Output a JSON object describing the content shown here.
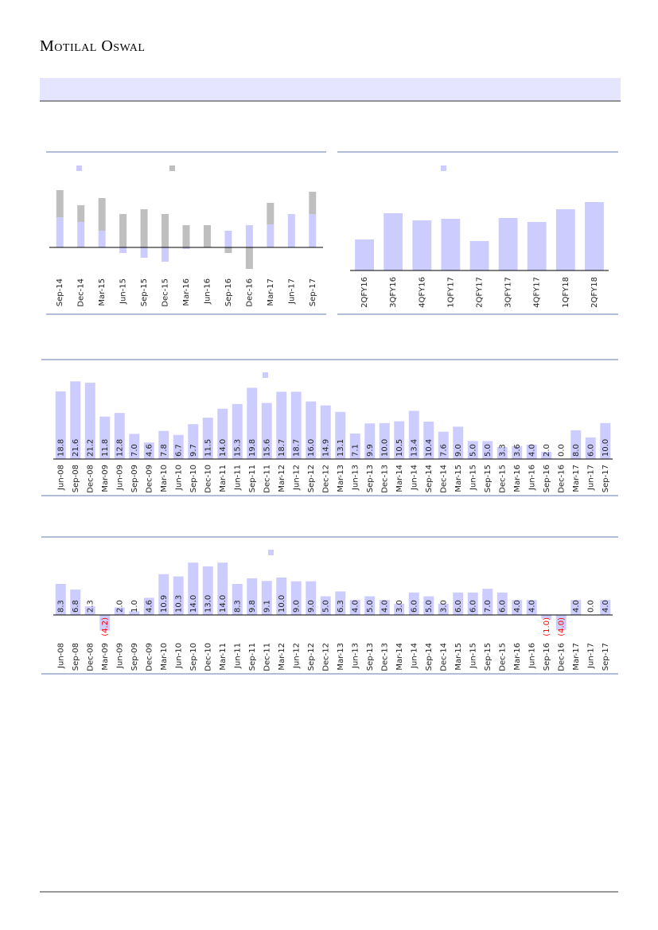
{
  "header": {
    "brand": "Motilal Oswal"
  },
  "chart_data": [
    {
      "type": "bar",
      "stacked": true,
      "categories": [
        "Sep-14",
        "Dec-14",
        "Mar-15",
        "Jun-15",
        "Sep-15",
        "Dec-15",
        "Mar-16",
        "Jun-16",
        "Sep-16",
        "Dec-16",
        "Mar-17",
        "Jun-17",
        "Sep-17"
      ],
      "series": [
        {
          "color": "#ccccff",
          "values": [
            3.8,
            3.2,
            2.1,
            -0.7,
            -1.3,
            -1.8,
            -0.2,
            0,
            2.1,
            2.8,
            2.9,
            4.2,
            4.2
          ]
        },
        {
          "color": "#bfbfbf",
          "values": [
            3.4,
            2.1,
            4.1,
            4.2,
            4.8,
            4.2,
            2.8,
            2.8,
            -0.7,
            -2.7,
            2.7,
            0,
            2.8
          ]
        }
      ],
      "ylim": [
        -3.4,
        8.6
      ]
    },
    {
      "type": "bar",
      "color": "#ccccff",
      "categories": [
        "2QFY16",
        "3QFY16",
        "4QFY16",
        "1QFY17",
        "2QFY17",
        "3QFY17",
        "4QFY17",
        "1QFY18",
        "2QFY18"
      ],
      "values": [
        3.9,
        7.2,
        6.3,
        6.5,
        3.7,
        6.6,
        6.1,
        7.7,
        8.6
      ],
      "ylim": [
        0,
        11.5
      ]
    },
    {
      "type": "bar",
      "color": "#ccccff",
      "categories": [
        "Jun-08",
        "Sep-08",
        "Dec-08",
        "Mar-09",
        "Jun-09",
        "Sep-09",
        "Dec-09",
        "Mar-10",
        "Jun-10",
        "Sep-10",
        "Dec-10",
        "Mar-11",
        "Jun-11",
        "Sep-11",
        "Dec-11",
        "Mar-12",
        "Jun-12",
        "Sep-12",
        "Dec-12",
        "Mar-13",
        "Jun-13",
        "Sep-13",
        "Dec-13",
        "Mar-14",
        "Jun-14",
        "Sep-14",
        "Dec-14",
        "Mar-15",
        "Jun-15",
        "Sep-15",
        "Dec-15",
        "Mar-16",
        "Jun-16",
        "Sep-16",
        "Dec-16",
        "Mar-17",
        "Jun-17",
        "Sep-17"
      ],
      "values": [
        18.8,
        21.6,
        21.2,
        11.8,
        12.8,
        7.0,
        4.6,
        7.8,
        6.7,
        9.7,
        11.5,
        14.0,
        15.3,
        19.8,
        15.6,
        18.7,
        18.7,
        16.0,
        14.9,
        13.1,
        7.1,
        9.9,
        10.0,
        10.5,
        13.4,
        10.4,
        7.6,
        9.0,
        5.0,
        5.0,
        3.3,
        3.6,
        4.0,
        2.0,
        0.0,
        8.0,
        6.0,
        10.0
      ],
      "value_labels": [
        "18.8",
        "21.6",
        "21.2",
        "11.8",
        "12.8",
        "7.0",
        "4.6",
        "7.8",
        "6.7",
        "9.7",
        "11.5",
        "14.0",
        "15.3",
        "19.8",
        "15.6",
        "18.7",
        "18.7",
        "16.0",
        "14.9",
        "13.1",
        "7.1",
        "9.9",
        "10.0",
        "10.5",
        "13.4",
        "10.4",
        "7.6",
        "9.0",
        "5.0",
        "5.0",
        "3.3",
        "3.6",
        "4.0",
        "2.0",
        "0.0",
        "8.0",
        "6.0",
        "10.0"
      ],
      "ylim": [
        0,
        23
      ]
    },
    {
      "type": "bar",
      "color": "#ccccff",
      "negative_label_color": "#ff0000",
      "categories": [
        "Jun-08",
        "Sep-08",
        "Dec-08",
        "Mar-09",
        "Jun-09",
        "Sep-09",
        "Dec-09",
        "Mar-10",
        "Jun-10",
        "Sep-10",
        "Dec-10",
        "Mar-11",
        "Jun-11",
        "Sep-11",
        "Dec-11",
        "Mar-12",
        "Jun-12",
        "Sep-12",
        "Dec-12",
        "Mar-13",
        "Jun-13",
        "Sep-13",
        "Dec-13",
        "Mar-14",
        "Jun-14",
        "Sep-14",
        "Dec-14",
        "Mar-15",
        "Jun-15",
        "Sep-15",
        "Dec-15",
        "Mar-16",
        "Jun-16",
        "Sep-16",
        "Dec-16",
        "Mar-17",
        "Jun-17",
        "Sep-17"
      ],
      "values": [
        8.3,
        6.8,
        2.3,
        -4.2,
        2.0,
        1.0,
        4.6,
        10.9,
        10.3,
        14.0,
        13.0,
        14.0,
        8.3,
        9.8,
        9.1,
        10.0,
        9.0,
        9.0,
        5.0,
        6.3,
        4.0,
        5.0,
        4.0,
        3.0,
        6.0,
        5.0,
        3.0,
        6.0,
        6.0,
        7.0,
        6.0,
        4.0,
        4.0,
        -1.0,
        -4.0,
        4.0,
        0.0,
        4.0
      ],
      "value_labels": [
        "8.3",
        "6.8",
        "2.3",
        "(4.2)",
        "2.0",
        "1.0",
        "4.6",
        "10.9",
        "10.3",
        "14.0",
        "13.0",
        "14.0",
        "8.3",
        "9.8",
        "9.1",
        "10.0",
        "9.0",
        "9.0",
        "5.0",
        "6.3",
        "4.0",
        "5.0",
        "4.0",
        "3.0",
        "6.0",
        "5.0",
        "3.0",
        "6.0",
        "6.0",
        "7.0",
        "6.0",
        "4.0",
        "4.0",
        "(1.0)",
        "(4.0)",
        "4.0",
        "0.0",
        "4.0"
      ],
      "ylim": [
        -5,
        16
      ]
    }
  ]
}
